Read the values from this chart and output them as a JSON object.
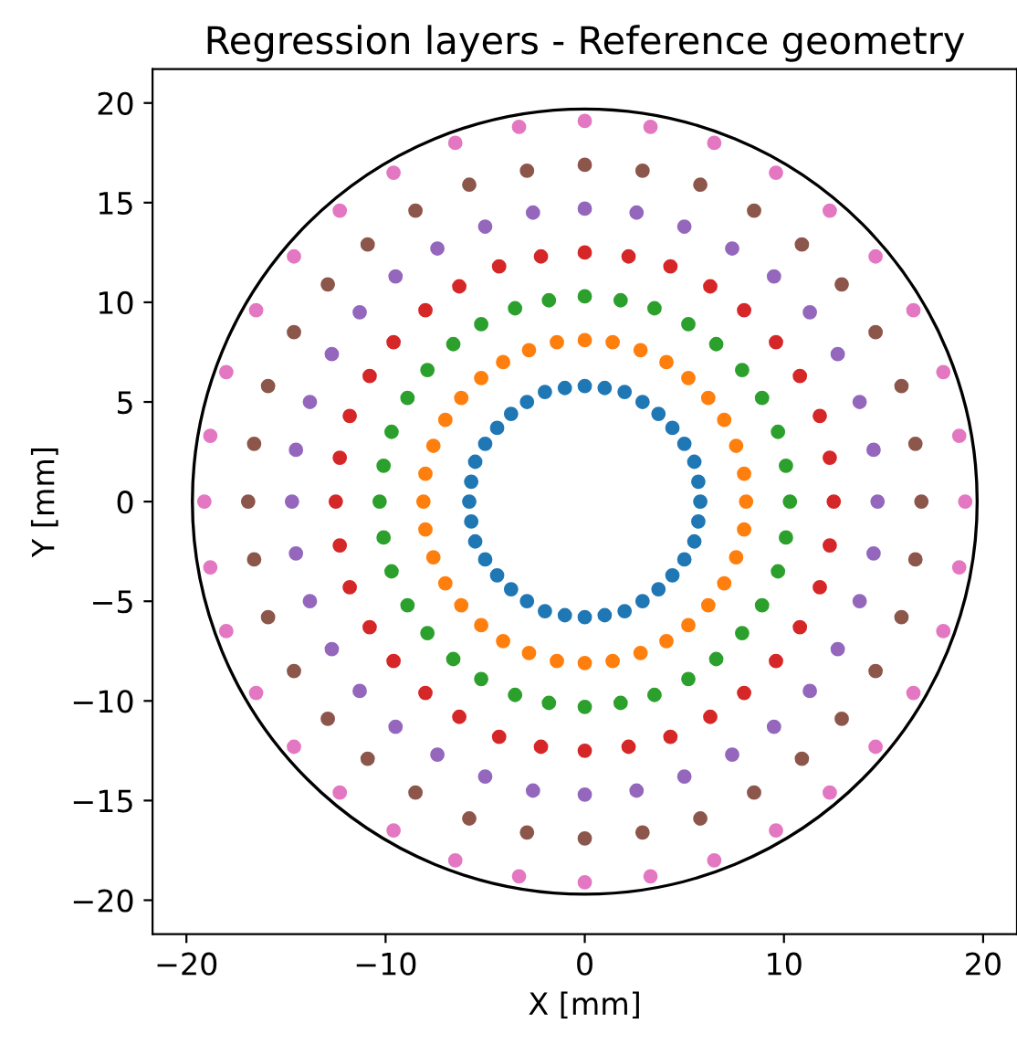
{
  "chart_data": {
    "type": "scatter",
    "title": "Regression layers - Reference geometry",
    "xlabel": "X [mm]",
    "ylabel": "Y [mm]",
    "xlim": [
      -21.7,
      21.7
    ],
    "ylim": [
      -21.7,
      21.7
    ],
    "xticks": [
      {
        "value": -20,
        "label": "−20"
      },
      {
        "value": -10,
        "label": "−10"
      },
      0,
      10,
      20
    ],
    "yticks": [
      {
        "value": -20,
        "label": "−20"
      },
      {
        "value": -15,
        "label": "−15"
      },
      {
        "value": -10,
        "label": "−10"
      },
      {
        "value": -5,
        "label": "−5"
      },
      0,
      5,
      10,
      15,
      20
    ],
    "grid": false,
    "legend": false,
    "marker": "circle",
    "series": [
      {
        "color": "#1f77b4",
        "x": [
          5.8,
          5.7,
          5.5,
          5.0,
          4.4,
          3.7,
          2.9,
          2.0,
          1.0,
          0,
          -1.0,
          -2.0,
          -2.9,
          -3.7,
          -4.4,
          -5.0,
          -5.5,
          -5.7,
          -5.8,
          -5.7,
          -5.5,
          -5.0,
          -4.4,
          -3.7,
          -2.9,
          -2.0,
          -1.0,
          0,
          1.0,
          2.0,
          2.9,
          3.7,
          4.4,
          5.0,
          5.5,
          5.7
        ],
        "values": [
          0,
          1.0,
          2.0,
          2.9,
          3.7,
          4.4,
          5.0,
          5.5,
          5.7,
          5.8,
          5.7,
          5.5,
          5.0,
          4.4,
          3.7,
          2.9,
          2.0,
          1.0,
          0,
          -1.0,
          -2.0,
          -2.9,
          -3.7,
          -4.4,
          -5.0,
          -5.5,
          -5.7,
          -5.8,
          -5.7,
          -5.5,
          -5.0,
          -4.4,
          -3.7,
          -2.9,
          -2.0,
          -1.0
        ]
      },
      {
        "color": "#ff7f0e",
        "x": [
          8.1,
          8.0,
          7.6,
          7.0,
          6.2,
          5.2,
          4.1,
          2.8,
          1.4,
          0,
          -1.4,
          -2.8,
          -4.1,
          -5.2,
          -6.2,
          -7.0,
          -7.6,
          -8.0,
          -8.1,
          -8.0,
          -7.6,
          -7.0,
          -6.2,
          -5.2,
          -4.1,
          -2.8,
          -1.4,
          0,
          1.4,
          2.8,
          4.1,
          5.2,
          6.2,
          7.0,
          7.6,
          8.0
        ],
        "values": [
          0,
          1.4,
          2.8,
          4.1,
          5.2,
          6.2,
          7.0,
          7.6,
          8.0,
          8.1,
          8.0,
          7.6,
          7.0,
          6.2,
          5.2,
          4.1,
          2.8,
          1.4,
          0,
          -1.4,
          -2.8,
          -4.1,
          -5.2,
          -6.2,
          -7.0,
          -7.6,
          -8.0,
          -8.1,
          -8.0,
          -7.6,
          -7.0,
          -6.2,
          -5.2,
          -4.1,
          -2.8,
          -1.4
        ]
      },
      {
        "color": "#2ca02c",
        "x": [
          10.3,
          10.1,
          9.7,
          8.9,
          7.9,
          6.6,
          5.2,
          3.5,
          1.8,
          0,
          -1.8,
          -3.5,
          -5.2,
          -6.6,
          -7.9,
          -8.9,
          -9.7,
          -10.1,
          -10.3,
          -10.1,
          -9.7,
          -8.9,
          -7.9,
          -6.6,
          -5.2,
          -3.5,
          -1.8,
          0,
          1.8,
          3.5,
          5.2,
          6.6,
          7.9,
          8.9,
          9.7,
          10.1
        ],
        "values": [
          0,
          1.8,
          3.5,
          5.2,
          6.6,
          7.9,
          8.9,
          9.7,
          10.1,
          10.3,
          10.1,
          9.7,
          8.9,
          7.9,
          6.6,
          5.2,
          3.5,
          1.8,
          0,
          -1.8,
          -3.5,
          -5.2,
          -6.6,
          -7.9,
          -8.9,
          -9.7,
          -10.1,
          -10.3,
          -10.1,
          -9.7,
          -8.9,
          -7.9,
          -6.6,
          -5.2,
          -3.5,
          -1.8
        ]
      },
      {
        "color": "#d62728",
        "x": [
          12.5,
          12.3,
          11.8,
          10.8,
          9.6,
          8.0,
          6.3,
          4.3,
          2.2,
          0,
          -2.2,
          -4.3,
          -6.3,
          -8.0,
          -9.6,
          -10.8,
          -11.8,
          -12.3,
          -12.5,
          -12.3,
          -11.8,
          -10.8,
          -9.6,
          -8.0,
          -6.3,
          -4.3,
          -2.2,
          0,
          2.2,
          4.3,
          6.3,
          8.0,
          9.6,
          10.8,
          11.8,
          12.3
        ],
        "values": [
          0,
          2.2,
          4.3,
          6.3,
          8.0,
          9.6,
          10.8,
          11.8,
          12.3,
          12.5,
          12.3,
          11.8,
          10.8,
          9.6,
          8.0,
          6.3,
          4.3,
          2.2,
          0,
          -2.2,
          -4.3,
          -6.3,
          -8.0,
          -9.6,
          -10.8,
          -11.8,
          -12.3,
          -12.5,
          -12.3,
          -11.8,
          -10.8,
          -9.6,
          -8.0,
          -6.3,
          -4.3,
          -2.2
        ]
      },
      {
        "color": "#9467bd",
        "x": [
          14.7,
          14.5,
          13.8,
          12.7,
          11.3,
          9.5,
          7.4,
          5.0,
          2.6,
          0,
          -2.6,
          -5.0,
          -7.4,
          -9.5,
          -11.3,
          -12.7,
          -13.8,
          -14.5,
          -14.7,
          -14.5,
          -13.8,
          -12.7,
          -11.3,
          -9.5,
          -7.4,
          -5.0,
          -2.6,
          0,
          2.6,
          5.0,
          7.4,
          9.5,
          11.3,
          12.7,
          13.8,
          14.5
        ],
        "values": [
          0,
          2.6,
          5.0,
          7.4,
          9.5,
          11.3,
          12.7,
          13.8,
          14.5,
          14.7,
          14.5,
          13.8,
          12.7,
          11.3,
          9.5,
          7.4,
          5.0,
          2.6,
          0,
          -2.6,
          -5.0,
          -7.4,
          -9.5,
          -11.3,
          -12.7,
          -13.8,
          -14.5,
          -14.7,
          -14.5,
          -13.8,
          -12.7,
          -11.3,
          -9.5,
          -7.4,
          -5.0,
          -2.6
        ]
      },
      {
        "color": "#8c564b",
        "x": [
          16.9,
          16.6,
          15.9,
          14.6,
          12.9,
          10.9,
          8.5,
          5.8,
          2.9,
          0,
          -2.9,
          -5.8,
          -8.5,
          -10.9,
          -12.9,
          -14.6,
          -15.9,
          -16.6,
          -16.9,
          -16.6,
          -15.9,
          -14.6,
          -12.9,
          -10.9,
          -8.5,
          -5.8,
          -2.9,
          0,
          2.9,
          5.8,
          8.5,
          10.9,
          12.9,
          14.6,
          15.9,
          16.6
        ],
        "values": [
          0,
          2.9,
          5.8,
          8.5,
          10.9,
          12.9,
          14.6,
          15.9,
          16.6,
          16.9,
          16.6,
          15.9,
          14.6,
          12.9,
          10.9,
          8.5,
          5.8,
          2.9,
          0,
          -2.9,
          -5.8,
          -8.5,
          -10.9,
          -12.9,
          -14.6,
          -15.9,
          -16.6,
          -16.9,
          -16.6,
          -15.9,
          -14.6,
          -12.9,
          -10.9,
          -8.5,
          -5.8,
          -2.9
        ]
      },
      {
        "color": "#e377c2",
        "x": [
          19.1,
          18.8,
          18.0,
          16.5,
          14.6,
          12.3,
          9.6,
          6.5,
          3.3,
          0,
          -3.3,
          -6.5,
          -9.6,
          -12.3,
          -14.6,
          -16.5,
          -18.0,
          -18.8,
          -19.1,
          -18.8,
          -18.0,
          -16.5,
          -14.6,
          -12.3,
          -9.6,
          -6.5,
          -3.3,
          0,
          3.3,
          6.5,
          9.6,
          12.3,
          14.6,
          16.5,
          18.0,
          18.8
        ],
        "values": [
          0,
          3.3,
          6.5,
          9.6,
          12.3,
          14.6,
          16.5,
          18.0,
          18.8,
          19.1,
          18.8,
          18.0,
          16.5,
          14.6,
          12.3,
          9.6,
          6.5,
          3.3,
          0,
          -3.3,
          -6.5,
          -9.6,
          -12.3,
          -14.6,
          -16.5,
          -18.0,
          -18.8,
          -19.1,
          -18.8,
          -18.0,
          -16.5,
          -14.6,
          -12.3,
          -9.6,
          -6.5,
          -3.3
        ]
      }
    ]
  }
}
